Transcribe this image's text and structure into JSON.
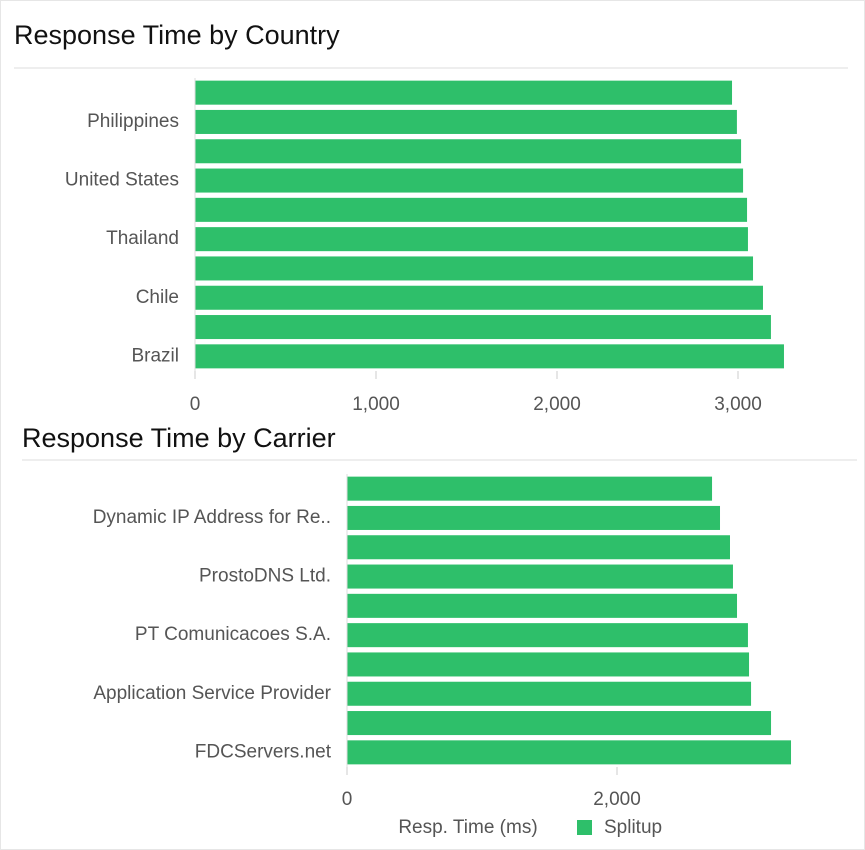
{
  "chart_data": [
    {
      "type": "bar",
      "orientation": "horizontal",
      "title": "Response Time by Country",
      "categories": [
        null,
        "Philippines",
        null,
        "United States",
        null,
        "Thailand",
        null,
        "Chile",
        null,
        "Brazil"
      ],
      "values": [
        2967,
        2994,
        3017,
        3028,
        3050,
        3055,
        3083,
        3138,
        3182,
        3254
      ],
      "color": "#2ebf6a",
      "xlim": [
        0,
        3600
      ],
      "xticks": [
        0,
        {
          "value": 1000,
          "label": "1,000"
        },
        {
          "value": 2000,
          "label": "2,000"
        },
        {
          "value": 3000,
          "label": "3,000"
        }
      ]
    },
    {
      "type": "bar",
      "orientation": "horizontal",
      "title": "Response Time by Carrier",
      "categories": [
        null,
        "Dynamic IP Address for Re..",
        null,
        "ProstoDNS Ltd.",
        null,
        "PT Comunicacoes S.A.",
        null,
        "Application Service Provider",
        null,
        "FDCServers.net"
      ],
      "series": [
        {
          "name": "Splitup",
          "color": "#2ebf6a",
          "values": [
            2704,
            2763,
            2837,
            2859,
            2889,
            2970,
            2978,
            2993,
            3141,
            3289
          ]
        }
      ],
      "x_label": "Resp. Time (ms)",
      "xlim": [
        0,
        3700
      ],
      "xticks": [
        0,
        {
          "value": 2000,
          "label": "2,000"
        }
      ]
    }
  ]
}
